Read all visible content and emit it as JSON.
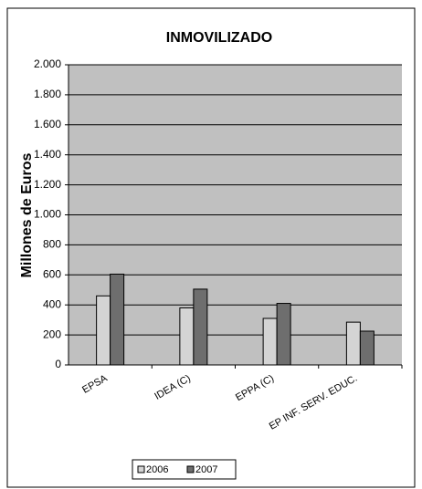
{
  "chart_data": {
    "type": "bar",
    "title": "INMOVILIZADO",
    "y_label": "Millones de Euros",
    "categories": [
      "EPSA",
      "IDEA (C)",
      "EPPA (C)",
      "EP INF. SERV. EDUC."
    ],
    "series": [
      {
        "name": "2006",
        "color": "#d4d4d4",
        "values": [
          460,
          380,
          310,
          285
        ]
      },
      {
        "name": "2007",
        "color": "#6e6e6e",
        "values": [
          605,
          505,
          410,
          225
        ]
      }
    ],
    "ylim": [
      0,
      2000
    ],
    "yticks": [
      0,
      200,
      400,
      600,
      800,
      {
        "value": 1000,
        "label": "1.000"
      },
      {
        "value": 1200,
        "label": "1.200"
      },
      {
        "value": 1400,
        "label": "1.400"
      },
      {
        "value": 1600,
        "label": "1.600"
      },
      {
        "value": 1800,
        "label": "1.800"
      },
      {
        "value": 2000,
        "label": "2.000"
      }
    ],
    "grid": true,
    "legend": "bottom"
  }
}
